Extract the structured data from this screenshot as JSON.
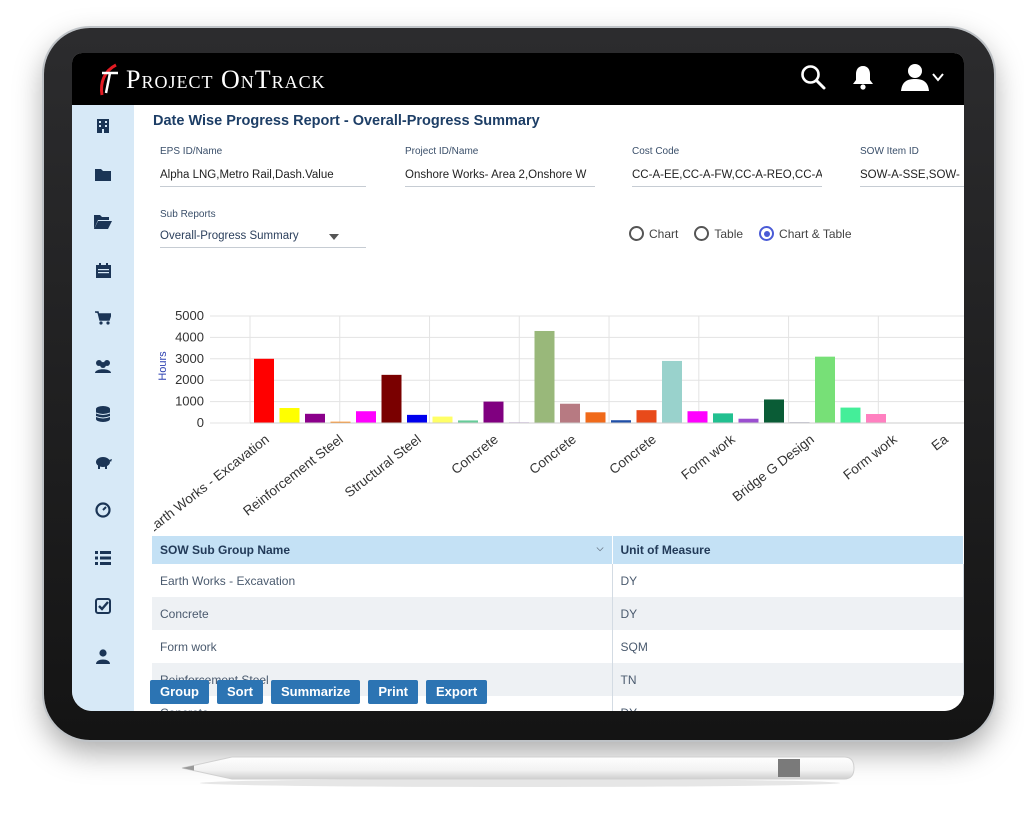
{
  "app": {
    "logo_text": "Project OnTrack"
  },
  "header_icons": [
    "search-icon",
    "bell-icon",
    "user-icon",
    "chevron-down-icon"
  ],
  "sidebar": {
    "items": [
      {
        "icon": "building-icon"
      },
      {
        "icon": "folder-icon"
      },
      {
        "icon": "folder-open-icon"
      },
      {
        "icon": "calendar-icon"
      },
      {
        "icon": "cart-icon"
      },
      {
        "icon": "users-icon"
      },
      {
        "icon": "database-icon"
      },
      {
        "icon": "piggy-bank-icon"
      },
      {
        "icon": "dashboard-icon"
      },
      {
        "icon": "list-icon"
      },
      {
        "icon": "checklist-icon"
      },
      {
        "icon": "user-icon"
      }
    ]
  },
  "page": {
    "title": "Date Wise Progress Report - Overall-Progress Summary"
  },
  "filters": {
    "eps": {
      "label": "EPS ID/Name",
      "value": "Alpha LNG,Metro Rail,Dash.Value"
    },
    "project": {
      "label": "Project ID/Name",
      "value": "Onshore  Works- Area 2,Onshore  W"
    },
    "cost_code": {
      "label": "Cost Code",
      "value": "CC-A-EE,CC-A-FW,CC-A-REO,CC-A-C"
    },
    "sow_item": {
      "label": "SOW Item ID",
      "value": "SOW-A-SSE,SOW-"
    },
    "sub_reports": {
      "label": "Sub Reports",
      "value": "Overall-Progress Summary"
    }
  },
  "view_options": {
    "options": [
      "Chart",
      "Table",
      "Chart & Table"
    ],
    "selected": "Chart & Table"
  },
  "chart_data": {
    "type": "bar",
    "ylabel": "Hours",
    "ylim": [
      0,
      5000
    ],
    "yticks": [
      0,
      1000,
      2000,
      3000,
      4000,
      5000
    ],
    "grid": true,
    "visible_category_labels": [
      "Earth Works - Excavation",
      "Reinforcement Steel",
      "Structural Steel",
      "Concrete",
      "Concrete",
      "Concrete",
      "Form work",
      "Bridge G Design",
      "Form work",
      "Ea"
    ],
    "bars": [
      {
        "value": 3000,
        "color": "#ff0000"
      },
      {
        "value": 700,
        "color": "#ffff00"
      },
      {
        "value": 430,
        "color": "#8b008b"
      },
      {
        "value": 60,
        "color": "#ff7f00"
      },
      {
        "value": 550,
        "color": "#ff00ff"
      },
      {
        "value": 2250,
        "color": "#7a0000"
      },
      {
        "value": 380,
        "color": "#0000ee"
      },
      {
        "value": 300,
        "color": "#ffff66"
      },
      {
        "value": 120,
        "color": "#66cc99"
      },
      {
        "value": 1000,
        "color": "#800080"
      },
      {
        "value": 30,
        "color": "#9a62c9"
      },
      {
        "value": 4300,
        "color": "#99b87a"
      },
      {
        "value": 900,
        "color": "#b77a82"
      },
      {
        "value": 500,
        "color": "#f06a1a"
      },
      {
        "value": 130,
        "color": "#1f4fa8"
      },
      {
        "value": 600,
        "color": "#e84a1a"
      },
      {
        "value": 2900,
        "color": "#99d2cc"
      },
      {
        "value": 550,
        "color": "#ff00ff"
      },
      {
        "value": 450,
        "color": "#22c090"
      },
      {
        "value": 200,
        "color": "#9b4fd0"
      },
      {
        "value": 1100,
        "color": "#0a5c36"
      },
      {
        "value": 30,
        "color": "#333366"
      },
      {
        "value": 3100,
        "color": "#77e077"
      },
      {
        "value": 720,
        "color": "#44ee99"
      },
      {
        "value": 420,
        "color": "#ff80c0"
      }
    ]
  },
  "table": {
    "columns": [
      "SOW Sub Group Name",
      "Unit of Measure"
    ],
    "rows": [
      [
        "Earth Works - Excavation",
        "DY"
      ],
      [
        "Concrete",
        "DY"
      ],
      [
        "Form work",
        "SQM"
      ],
      [
        "Reinforcement Steel",
        "TN"
      ],
      [
        "Concrete",
        "DY"
      ]
    ]
  },
  "actions": [
    "Group",
    "Sort",
    "Summarize",
    "Print",
    "Export"
  ]
}
